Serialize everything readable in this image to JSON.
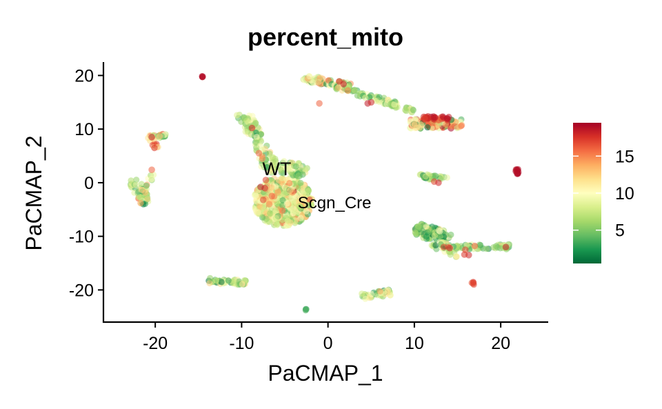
{
  "chart_data": {
    "type": "scatter",
    "title": "percent_mito",
    "xlabel": "PaCMAP_1",
    "ylabel": "PaCMAP_2",
    "xlim": [
      -26,
      25.5
    ],
    "ylim": [
      -26,
      22.5
    ],
    "xticks": [
      -20,
      -10,
      0,
      10,
      20
    ],
    "yticks": [
      -20,
      -10,
      0,
      10,
      20
    ],
    "grid": false,
    "colorbar": {
      "ticks": [
        5,
        10,
        15
      ],
      "range": [
        0.5,
        19.5
      ],
      "colormap": [
        "#006837",
        "#1a9850",
        "#66bd63",
        "#a6d96a",
        "#d9ef8b",
        "#ffffbf",
        "#fee08b",
        "#fdae61",
        "#f46d43",
        "#d73027",
        "#a50026"
      ],
      "placement": "right"
    },
    "annotations": [
      {
        "text": "WT",
        "x": -7.6,
        "y": 1.4
      },
      {
        "text": "Scgn_Cre",
        "x": -3.5,
        "y": -4.8
      }
    ],
    "clusters": [
      {
        "shape": "blob",
        "cx": -5.2,
        "cy": -3.5,
        "rx": 3.4,
        "ry": 4.6,
        "n": 650,
        "v_mean": 9.5,
        "v_sd": 3.0
      },
      {
        "shape": "line",
        "from": [
          -9.8,
          13.0
        ],
        "to": [
          -6.2,
          2.0
        ],
        "width": 0.9,
        "n": 90,
        "v_mean": 7.5,
        "v_sd": 3.0
      },
      {
        "shape": "line",
        "from": [
          -7.5,
          4.0
        ],
        "to": [
          -2.5,
          2.0
        ],
        "width": 1.2,
        "n": 60,
        "v_mean": 7,
        "v_sd": 2.5
      },
      {
        "shape": "line",
        "from": [
          -3.0,
          19.6
        ],
        "to": [
          2.5,
          18.0
        ],
        "width": 0.6,
        "n": 80,
        "v_mean": 9,
        "v_sd": 4.5
      },
      {
        "shape": "line",
        "from": [
          1.0,
          18.0
        ],
        "to": [
          8.0,
          14.5
        ],
        "width": 0.5,
        "n": 70,
        "v_mean": 6,
        "v_sd": 3.0
      },
      {
        "shape": "line",
        "from": [
          7.0,
          14.8
        ],
        "to": [
          10.0,
          13.4
        ],
        "width": 0.4,
        "n": 25,
        "v_mean": 7,
        "v_sd": 2.5
      },
      {
        "shape": "line",
        "from": [
          9.5,
          11.0
        ],
        "to": [
          15.5,
          11.0
        ],
        "width": 0.9,
        "n": 110,
        "v_mean": 12,
        "v_sd": 4.5
      },
      {
        "shape": "line",
        "from": [
          11.0,
          12.0
        ],
        "to": [
          14.0,
          12.0
        ],
        "width": 0.4,
        "n": 30,
        "v_mean": 17.5,
        "v_sd": 1.2
      },
      {
        "shape": "line",
        "from": [
          10.5,
          1.3
        ],
        "to": [
          13.8,
          0.6
        ],
        "width": 0.45,
        "n": 30,
        "v_mean": 6,
        "v_sd": 3.0
      },
      {
        "shape": "line",
        "from": [
          10.0,
          -8.5
        ],
        "to": [
          14.0,
          -10.5
        ],
        "width": 1.2,
        "n": 90,
        "v_mean": 5,
        "v_sd": 2.8
      },
      {
        "shape": "line",
        "from": [
          12.0,
          -12.0
        ],
        "to": [
          21.0,
          -12.0
        ],
        "width": 0.5,
        "n": 70,
        "v_mean": 6,
        "v_sd": 3.0
      },
      {
        "shape": "line",
        "from": [
          12.5,
          -9.0
        ],
        "to": [
          14.5,
          -14.0
        ],
        "width": 0.5,
        "n": 35,
        "v_mean": 7,
        "v_sd": 3.0
      },
      {
        "shape": "line",
        "from": [
          -22.5,
          0.5
        ],
        "to": [
          -21.0,
          -4.0
        ],
        "width": 0.7,
        "n": 45,
        "v_mean": 6,
        "v_sd": 3.0
      },
      {
        "shape": "line",
        "from": [
          -21.5,
          -2.0
        ],
        "to": [
          -20.3,
          2.3
        ],
        "width": 0.4,
        "n": 15,
        "v_mean": 8,
        "v_sd": 3.5
      },
      {
        "shape": "line",
        "from": [
          -21.0,
          8.5
        ],
        "to": [
          -18.7,
          8.8
        ],
        "width": 0.35,
        "n": 25,
        "v_mean": 10,
        "v_sd": 4.5
      },
      {
        "shape": "line",
        "from": [
          -20.4,
          8.0
        ],
        "to": [
          -19.8,
          6.3
        ],
        "width": 0.3,
        "n": 10,
        "v_mean": 14,
        "v_sd": 3.0
      },
      {
        "shape": "line",
        "from": [
          -13.8,
          -18.3
        ],
        "to": [
          -9.5,
          -18.6
        ],
        "width": 0.5,
        "n": 50,
        "v_mean": 8,
        "v_sd": 3.0
      },
      {
        "shape": "line",
        "from": [
          4.0,
          -21.2
        ],
        "to": [
          7.2,
          -20.5
        ],
        "width": 0.55,
        "n": 40,
        "v_mean": 7,
        "v_sd": 2.5
      },
      {
        "shape": "line",
        "from": [
          21.9,
          2.8
        ],
        "to": [
          21.9,
          1.6
        ],
        "width": 0.18,
        "n": 10,
        "v_mean": 19,
        "v_sd": 0.5
      },
      {
        "shape": "line",
        "from": [
          16.7,
          -18.5
        ],
        "to": [
          16.8,
          -19.2
        ],
        "width": 0.15,
        "n": 4,
        "v_mean": 17,
        "v_sd": 1.0
      },
      {
        "shape": "line",
        "from": [
          -14.6,
          19.8
        ],
        "to": [
          -14.5,
          19.8
        ],
        "width": 0.12,
        "n": 3,
        "v_mean": 19,
        "v_sd": 0.5
      },
      {
        "shape": "line",
        "from": [
          -2.6,
          -23.7
        ],
        "to": [
          -2.5,
          -23.7
        ],
        "width": 0.12,
        "n": 3,
        "v_mean": 3,
        "v_sd": 0.3
      }
    ],
    "highlights": [
      {
        "x": -7.3,
        "y": -1.0,
        "v": 18
      },
      {
        "x": -7.8,
        "y": -0.8,
        "v": 18.5
      },
      {
        "x": -7.5,
        "y": -3.2,
        "v": 17
      },
      {
        "x": -6.5,
        "y": -2.5,
        "v": 16
      },
      {
        "x": -6.8,
        "y": -4.0,
        "v": 15
      },
      {
        "x": -5.8,
        "y": -1.8,
        "v": 14
      },
      {
        "x": -7.2,
        "y": 0.5,
        "v": 17
      },
      {
        "x": -8.8,
        "y": 10.2,
        "v": 18
      },
      {
        "x": -8.0,
        "y": 5.5,
        "v": 16
      },
      {
        "x": -7.6,
        "y": 4.5,
        "v": 15
      },
      {
        "x": -20.4,
        "y": 8.5,
        "v": 18.5
      },
      {
        "x": -20.1,
        "y": 6.5,
        "v": 17.5
      },
      {
        "x": -20.4,
        "y": 2.4,
        "v": 16
      },
      {
        "x": -21.7,
        "y": -3.8,
        "v": 14
      },
      {
        "x": -14.5,
        "y": 19.8,
        "v": 19
      },
      {
        "x": 1.3,
        "y": 18.9,
        "v": 18
      },
      {
        "x": 1.8,
        "y": 18.4,
        "v": 18.5
      },
      {
        "x": -1.0,
        "y": 14.8,
        "v": 16
      },
      {
        "x": 2.3,
        "y": 17.2,
        "v": 15
      },
      {
        "x": 4.6,
        "y": 14.8,
        "v": 18.5
      },
      {
        "x": 5.0,
        "y": 15.0,
        "v": 18
      },
      {
        "x": 12.4,
        "y": 12.2,
        "v": 18.5
      },
      {
        "x": 13.8,
        "y": 12.0,
        "v": 19
      },
      {
        "x": 11.2,
        "y": 12.0,
        "v": 17
      },
      {
        "x": 12.3,
        "y": 0.2,
        "v": 17
      },
      {
        "x": 12.8,
        "y": 0.0,
        "v": 18
      },
      {
        "x": 13.4,
        "y": -12.0,
        "v": 17
      },
      {
        "x": 14.1,
        "y": -12.2,
        "v": 18
      },
      {
        "x": 15.9,
        "y": -12.5,
        "v": 17
      },
      {
        "x": 16.3,
        "y": -13.5,
        "v": 18
      },
      {
        "x": 15.8,
        "y": -13.4,
        "v": 17.5
      },
      {
        "x": 20.6,
        "y": -12.0,
        "v": 18.5
      },
      {
        "x": 16.8,
        "y": -18.8,
        "v": 17
      },
      {
        "x": 22.0,
        "y": 2.5,
        "v": 19
      },
      {
        "x": 21.9,
        "y": 1.8,
        "v": 19
      },
      {
        "x": 17.0,
        "y": -11.8,
        "v": 16
      }
    ]
  }
}
